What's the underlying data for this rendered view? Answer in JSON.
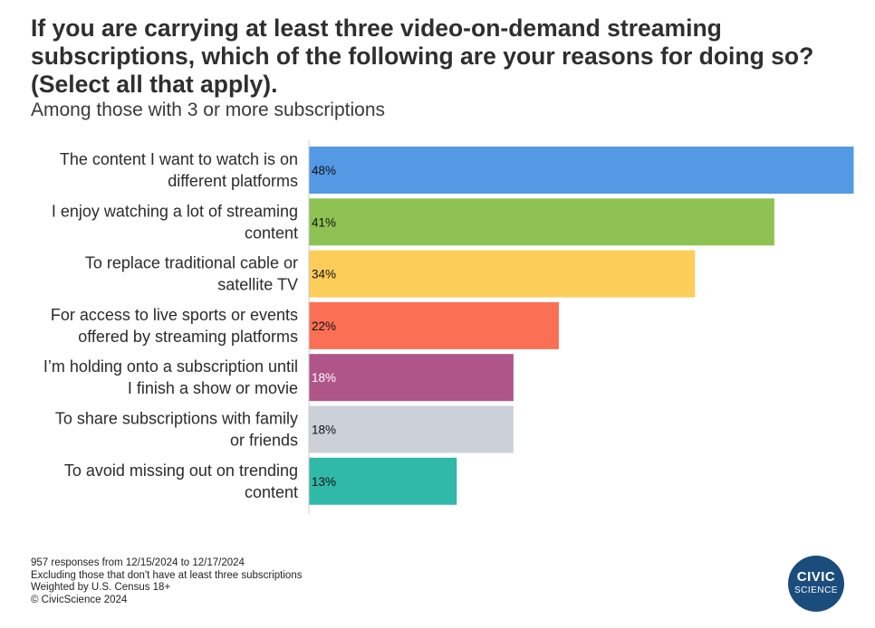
{
  "title": "If you are carrying at least three video-on-demand streaming subscriptions, which of the following are your reasons for doing so? (Select all that apply).",
  "subtitle": "Among those with 3 or more subscriptions",
  "chart_data": {
    "type": "bar",
    "orientation": "horizontal",
    "title": "If you are carrying at least three video-on-demand streaming subscriptions, which of the following are your reasons for doing so? (Select all that apply).",
    "subtitle": "Among those with 3 or more subscriptions",
    "xlabel": "",
    "ylabel": "",
    "xlim": [
      0,
      48
    ],
    "grid": false,
    "categories": [
      [
        "The content I want to watch is on",
        "different platforms"
      ],
      [
        "I enjoy watching a lot of streaming",
        "content"
      ],
      [
        "To replace traditional cable or",
        "satellite TV"
      ],
      [
        "For access to live sports or events",
        "offered by streaming platforms"
      ],
      [
        "I’m holding onto a subscription until",
        "I finish a show or movie"
      ],
      [
        "To share subscriptions with family",
        "or friends"
      ],
      [
        "To avoid missing out on trending",
        "content"
      ]
    ],
    "values": [
      48,
      41,
      34,
      22,
      18,
      18,
      13
    ],
    "value_labels": [
      "48%",
      "41%",
      "34%",
      "22%",
      "18%",
      "18%",
      "13%"
    ],
    "colors": [
      "#5499e3",
      "#8ec253",
      "#fdcd5a",
      "#fb7054",
      "#af5588",
      "#ccd1d9",
      "#30b9a8"
    ],
    "label_colors": [
      "#111111",
      "#111111",
      "#111111",
      "#111111",
      "#ffffff",
      "#111111",
      "#111111"
    ]
  },
  "footer": {
    "lines": [
      "957 responses from 12/15/2024 to 12/17/2024",
      "Excluding those that don't have at least three subscriptions",
      "Weighted by U.S. Census 18+",
      "© CivicScience 2024"
    ]
  },
  "logo": {
    "line1": "CIVIC",
    "line2": "SCIENCE"
  }
}
